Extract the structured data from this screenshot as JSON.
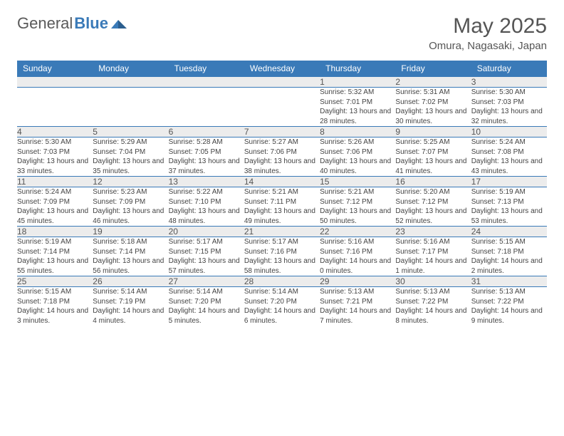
{
  "brand": {
    "part1": "General",
    "part2": "Blue"
  },
  "title": "May 2025",
  "location": "Omura, Nagasaki, Japan",
  "colors": {
    "header_bg": "#3a7ab8",
    "header_text": "#ffffff",
    "daynum_bg": "#ececec",
    "border": "#3a7ab8",
    "text": "#444444",
    "title_text": "#555555"
  },
  "typography": {
    "title_fontsize": 30,
    "location_fontsize": 15,
    "header_fontsize": 12,
    "daynum_fontsize": 12,
    "details_fontsize": 10
  },
  "weekdays": [
    "Sunday",
    "Monday",
    "Tuesday",
    "Wednesday",
    "Thursday",
    "Friday",
    "Saturday"
  ],
  "weeks": [
    [
      null,
      null,
      null,
      null,
      {
        "n": "1",
        "sr": "5:32 AM",
        "ss": "7:01 PM",
        "dl": "13 hours and 28 minutes."
      },
      {
        "n": "2",
        "sr": "5:31 AM",
        "ss": "7:02 PM",
        "dl": "13 hours and 30 minutes."
      },
      {
        "n": "3",
        "sr": "5:30 AM",
        "ss": "7:03 PM",
        "dl": "13 hours and 32 minutes."
      }
    ],
    [
      {
        "n": "4",
        "sr": "5:30 AM",
        "ss": "7:03 PM",
        "dl": "13 hours and 33 minutes."
      },
      {
        "n": "5",
        "sr": "5:29 AM",
        "ss": "7:04 PM",
        "dl": "13 hours and 35 minutes."
      },
      {
        "n": "6",
        "sr": "5:28 AM",
        "ss": "7:05 PM",
        "dl": "13 hours and 37 minutes."
      },
      {
        "n": "7",
        "sr": "5:27 AM",
        "ss": "7:06 PM",
        "dl": "13 hours and 38 minutes."
      },
      {
        "n": "8",
        "sr": "5:26 AM",
        "ss": "7:06 PM",
        "dl": "13 hours and 40 minutes."
      },
      {
        "n": "9",
        "sr": "5:25 AM",
        "ss": "7:07 PM",
        "dl": "13 hours and 41 minutes."
      },
      {
        "n": "10",
        "sr": "5:24 AM",
        "ss": "7:08 PM",
        "dl": "13 hours and 43 minutes."
      }
    ],
    [
      {
        "n": "11",
        "sr": "5:24 AM",
        "ss": "7:09 PM",
        "dl": "13 hours and 45 minutes."
      },
      {
        "n": "12",
        "sr": "5:23 AM",
        "ss": "7:09 PM",
        "dl": "13 hours and 46 minutes."
      },
      {
        "n": "13",
        "sr": "5:22 AM",
        "ss": "7:10 PM",
        "dl": "13 hours and 48 minutes."
      },
      {
        "n": "14",
        "sr": "5:21 AM",
        "ss": "7:11 PM",
        "dl": "13 hours and 49 minutes."
      },
      {
        "n": "15",
        "sr": "5:21 AM",
        "ss": "7:12 PM",
        "dl": "13 hours and 50 minutes."
      },
      {
        "n": "16",
        "sr": "5:20 AM",
        "ss": "7:12 PM",
        "dl": "13 hours and 52 minutes."
      },
      {
        "n": "17",
        "sr": "5:19 AM",
        "ss": "7:13 PM",
        "dl": "13 hours and 53 minutes."
      }
    ],
    [
      {
        "n": "18",
        "sr": "5:19 AM",
        "ss": "7:14 PM",
        "dl": "13 hours and 55 minutes."
      },
      {
        "n": "19",
        "sr": "5:18 AM",
        "ss": "7:14 PM",
        "dl": "13 hours and 56 minutes."
      },
      {
        "n": "20",
        "sr": "5:17 AM",
        "ss": "7:15 PM",
        "dl": "13 hours and 57 minutes."
      },
      {
        "n": "21",
        "sr": "5:17 AM",
        "ss": "7:16 PM",
        "dl": "13 hours and 58 minutes."
      },
      {
        "n": "22",
        "sr": "5:16 AM",
        "ss": "7:16 PM",
        "dl": "14 hours and 0 minutes."
      },
      {
        "n": "23",
        "sr": "5:16 AM",
        "ss": "7:17 PM",
        "dl": "14 hours and 1 minute."
      },
      {
        "n": "24",
        "sr": "5:15 AM",
        "ss": "7:18 PM",
        "dl": "14 hours and 2 minutes."
      }
    ],
    [
      {
        "n": "25",
        "sr": "5:15 AM",
        "ss": "7:18 PM",
        "dl": "14 hours and 3 minutes."
      },
      {
        "n": "26",
        "sr": "5:14 AM",
        "ss": "7:19 PM",
        "dl": "14 hours and 4 minutes."
      },
      {
        "n": "27",
        "sr": "5:14 AM",
        "ss": "7:20 PM",
        "dl": "14 hours and 5 minutes."
      },
      {
        "n": "28",
        "sr": "5:14 AM",
        "ss": "7:20 PM",
        "dl": "14 hours and 6 minutes."
      },
      {
        "n": "29",
        "sr": "5:13 AM",
        "ss": "7:21 PM",
        "dl": "14 hours and 7 minutes."
      },
      {
        "n": "30",
        "sr": "5:13 AM",
        "ss": "7:22 PM",
        "dl": "14 hours and 8 minutes."
      },
      {
        "n": "31",
        "sr": "5:13 AM",
        "ss": "7:22 PM",
        "dl": "14 hours and 9 minutes."
      }
    ]
  ],
  "labels": {
    "sunrise": "Sunrise:",
    "sunset": "Sunset:",
    "daylight": "Daylight:"
  }
}
